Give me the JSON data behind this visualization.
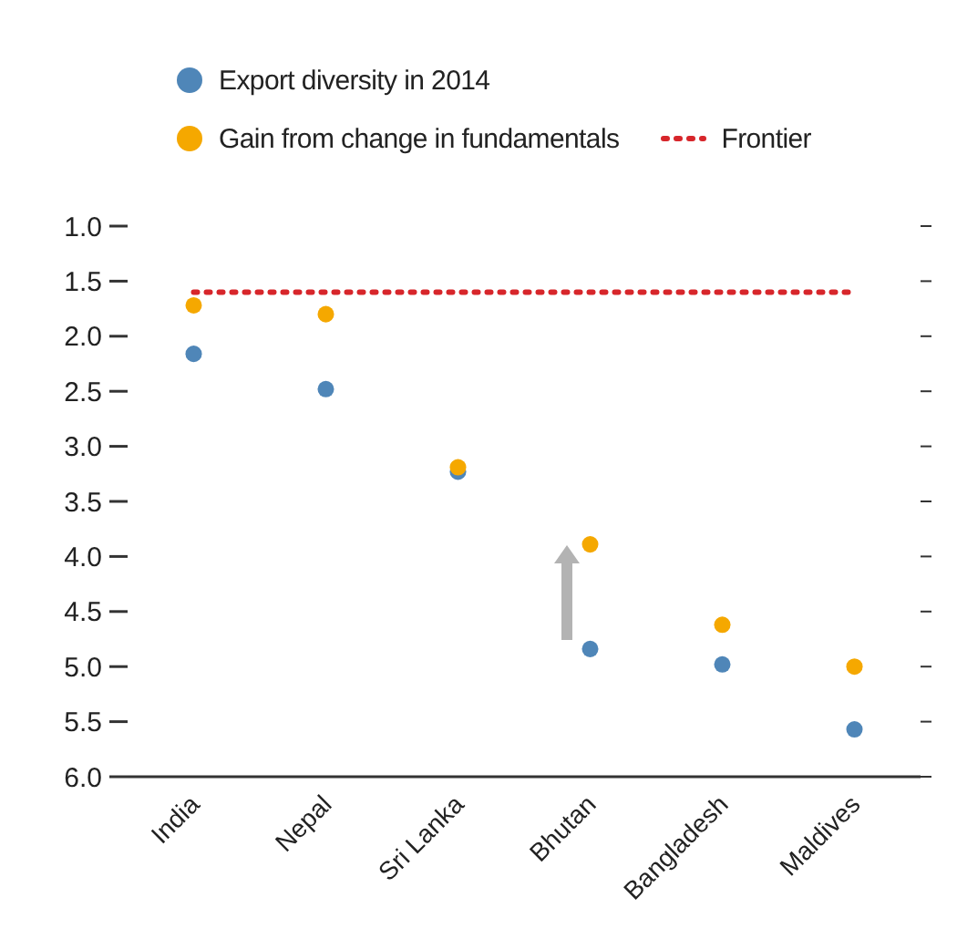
{
  "chart_data": {
    "type": "scatter",
    "categories": [
      "India",
      "Nepal",
      "Sri Lanka",
      "Bhutan",
      "Bangladesh",
      "Maldives"
    ],
    "series": [
      {
        "name": "Export diversity in 2014",
        "color": "#4f86b8",
        "values": [
          2.16,
          2.48,
          3.23,
          4.84,
          4.98,
          5.57
        ]
      },
      {
        "name": "Gain from change in fundamentals",
        "color": "#f5a800",
        "values": [
          1.72,
          1.8,
          3.19,
          3.89,
          4.62,
          5.0
        ]
      }
    ],
    "ylim": [
      6,
      1
    ],
    "yticks": [
      {
        "value": 1,
        "label": "1.0"
      },
      {
        "value": 1.5,
        "label": "1.5"
      },
      {
        "value": 2,
        "label": "2.0"
      },
      {
        "value": 2.5,
        "label": "2.5"
      },
      {
        "value": 3,
        "label": "3.0"
      },
      {
        "value": 3.5,
        "label": "3.5"
      },
      {
        "value": 4,
        "label": "4.0"
      },
      {
        "value": 4.5,
        "label": "4.5"
      },
      {
        "value": 5,
        "label": "5.0"
      },
      {
        "value": 5.5,
        "label": "5.5"
      },
      {
        "value": 6,
        "label": "6.0"
      }
    ],
    "ref_lines": [
      {
        "axis": "y",
        "value": 1.6,
        "label": "Frontier",
        "color": "#d7262b",
        "line_style": "dotted"
      }
    ],
    "marker": "circle",
    "legend": "top"
  }
}
